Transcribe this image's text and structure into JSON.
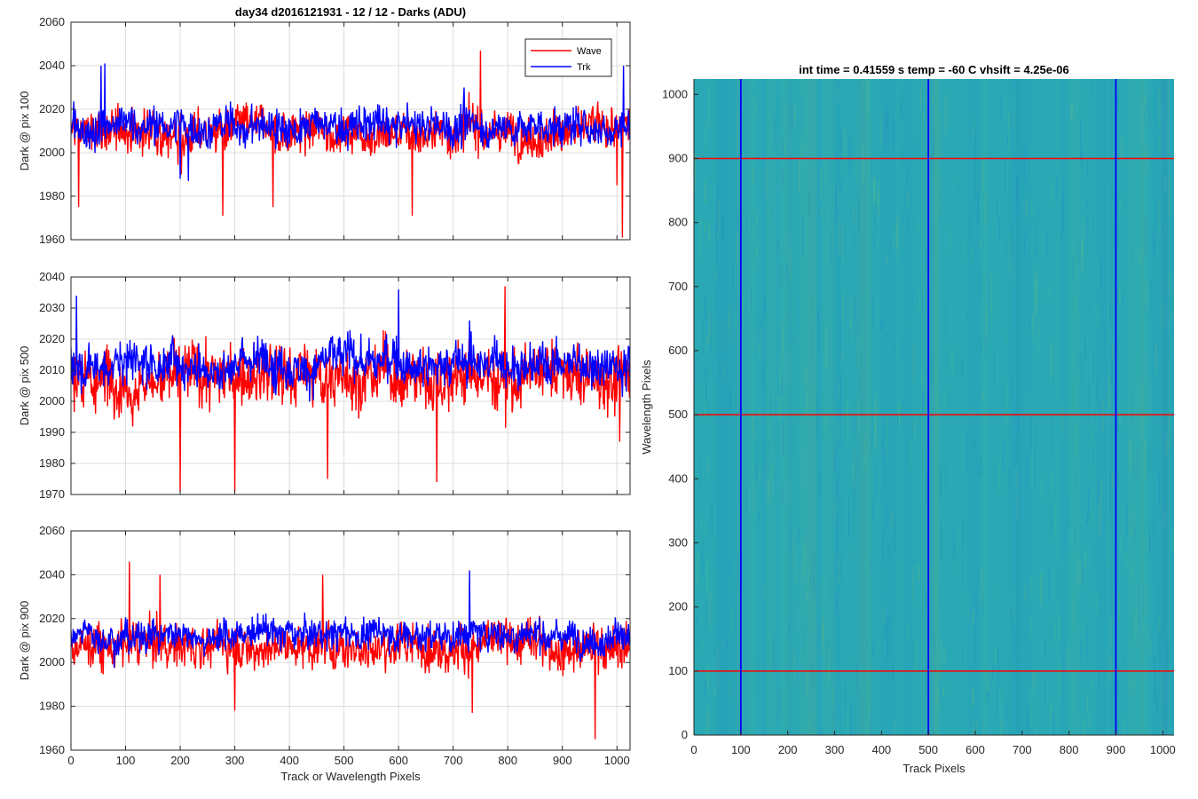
{
  "chart_data": [
    {
      "type": "line",
      "title": "day34 d2016121931 - 12 / 12 - Darks (ADU)",
      "xlabel": "",
      "ylabel": "Dark @ pix 100",
      "xlim": [
        0,
        1024
      ],
      "ylim": [
        1960,
        2060
      ],
      "xticks": [
        0,
        100,
        200,
        300,
        400,
        500,
        600,
        700,
        800,
        900,
        1000
      ],
      "yticks": [
        1960,
        1980,
        2000,
        2020,
        2040,
        2060
      ],
      "grid": true,
      "legend": {
        "placement": "top-right",
        "entries": [
          "Wave",
          "Trk"
        ]
      },
      "series": [
        {
          "name": "Wave",
          "color": "#ff0000",
          "mean": 2010,
          "noise": 7,
          "spikes": [
            [
              14,
              1975
            ],
            [
              202,
              1990
            ],
            [
              278,
              1971
            ],
            [
              370,
              1975
            ],
            [
              625,
              1971
            ],
            [
              750,
              2047
            ],
            [
              1000,
              1985
            ],
            [
              1010,
              1961
            ]
          ]
        },
        {
          "name": "Trk",
          "color": "#0000ff",
          "mean": 2012,
          "noise": 6,
          "spikes": [
            [
              55,
              2040
            ],
            [
              62,
              2041
            ],
            [
              200,
              1988
            ],
            [
              215,
              1987
            ],
            [
              720,
              2030
            ],
            [
              1012,
              2040
            ]
          ]
        }
      ]
    },
    {
      "type": "line",
      "xlabel": "",
      "ylabel": "Dark @ pix 500",
      "xlim": [
        0,
        1024
      ],
      "ylim": [
        1970,
        2040
      ],
      "xticks": [
        0,
        100,
        200,
        300,
        400,
        500,
        600,
        700,
        800,
        900,
        1000
      ],
      "yticks": [
        1970,
        1980,
        1990,
        2000,
        2010,
        2020,
        2030,
        2040
      ],
      "grid": true,
      "series": [
        {
          "name": "Wave",
          "color": "#ff0000",
          "mean": 2008,
          "noise": 7,
          "spikes": [
            [
              200,
              1971
            ],
            [
              300,
              1971
            ],
            [
              470,
              2038
            ],
            [
              470,
              1975
            ],
            [
              670,
              1974
            ],
            [
              795,
              2037
            ],
            [
              1005,
              1987
            ]
          ]
        },
        {
          "name": "Trk",
          "color": "#0000ff",
          "mean": 2013,
          "noise": 5,
          "spikes": [
            [
              10,
              2034
            ],
            [
              600,
              2036
            ],
            [
              730,
              2026
            ]
          ]
        }
      ]
    },
    {
      "type": "line",
      "xlabel": "Track or Wavelength Pixels",
      "ylabel": "Dark @ pix 900",
      "xlim": [
        0,
        1024
      ],
      "ylim": [
        1960,
        2060
      ],
      "xticks": [
        0,
        100,
        200,
        300,
        400,
        500,
        600,
        700,
        800,
        900,
        1000
      ],
      "yticks": [
        1960,
        1980,
        2000,
        2020,
        2040,
        2060
      ],
      "grid": true,
      "series": [
        {
          "name": "Wave",
          "color": "#ff0000",
          "mean": 2008,
          "noise": 7,
          "spikes": [
            [
              107,
              2046
            ],
            [
              163,
              2040
            ],
            [
              300,
              1978
            ],
            [
              461,
              2040
            ],
            [
              735,
              1977
            ],
            [
              960,
              1965
            ]
          ]
        },
        {
          "name": "Trk",
          "color": "#0000ff",
          "mean": 2013,
          "noise": 5,
          "spikes": [
            [
              730,
              2042
            ]
          ]
        }
      ]
    },
    {
      "type": "heatmap",
      "title": "int time = 0.41559 s   temp = -60 C   vhsift = 4.25e-06",
      "xlabel": "Track Pixels",
      "ylabel": "Wavelength Pixels",
      "xlim": [
        0,
        1024
      ],
      "ylim": [
        0,
        1024
      ],
      "xticks": [
        0,
        100,
        200,
        300,
        400,
        500,
        600,
        700,
        800,
        900,
        1000
      ],
      "yticks": [
        0,
        100,
        200,
        300,
        400,
        500,
        600,
        700,
        800,
        900,
        1000
      ],
      "colors": {
        "base": "#2aa9b4",
        "low": "#1f8fc4",
        "high": "#58b888"
      },
      "vertical_lines": {
        "color": "#0000ff",
        "x": [
          100,
          500,
          900
        ]
      },
      "horizontal_lines": {
        "color": "#ff0000",
        "y": [
          100,
          500,
          900
        ]
      }
    }
  ]
}
